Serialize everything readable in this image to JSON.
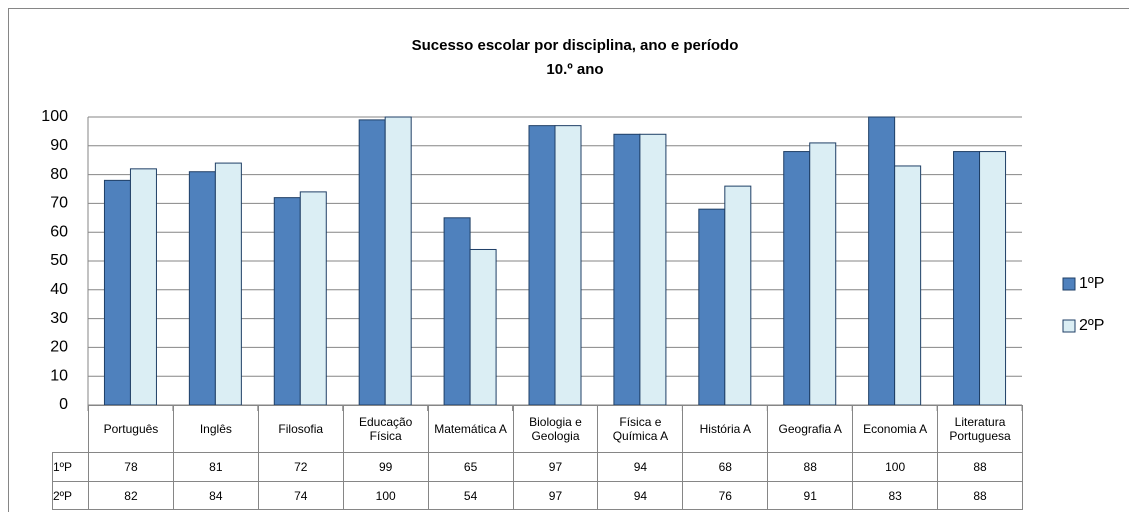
{
  "chart_data": {
    "type": "bar",
    "title": "Sucesso escolar por disciplina, ano e período",
    "subtitle": "10.º ano",
    "categories": [
      "Português",
      "Inglês",
      "Filosofia",
      "Educação Física",
      "Matemática A",
      "Biologia e Geologia",
      "Física e Química A",
      "História A",
      "Geografia A",
      "Economia A",
      "Literatura Portuguesa"
    ],
    "series": [
      {
        "name": "1ºP",
        "color": "#4f81bd",
        "values": [
          78,
          81,
          72,
          99,
          65,
          97,
          94,
          68,
          88,
          100,
          88
        ]
      },
      {
        "name": "2ºP",
        "color": "#dbeef4",
        "values": [
          82,
          84,
          74,
          100,
          54,
          97,
          94,
          76,
          91,
          83,
          88
        ]
      }
    ],
    "ylim": [
      0,
      100
    ],
    "yticks": [
      0,
      10,
      20,
      30,
      40,
      50,
      60,
      70,
      80,
      90,
      100
    ],
    "grid": true,
    "legend": "right"
  }
}
